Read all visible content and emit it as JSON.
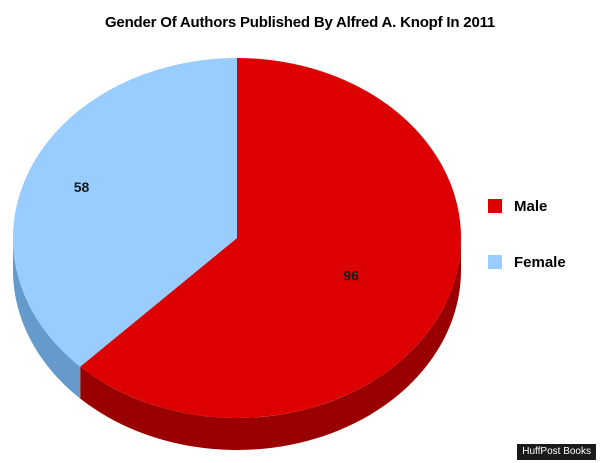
{
  "chart_data": {
    "type": "pie",
    "title": "Gender Of Authors Published By Alfred A. Knopf In 2011",
    "slices": [
      {
        "label": "Male",
        "value": 96,
        "color": "#dd0000",
        "side_color": "#990000"
      },
      {
        "label": "Female",
        "value": 58,
        "color": "#99ccff",
        "side_color": "#6699cc"
      }
    ],
    "data_labels": [
      "96",
      "58"
    ],
    "legend": {
      "placement": "right",
      "entries": [
        "Male",
        "Female"
      ]
    }
  },
  "credit": "HuffPost Books"
}
